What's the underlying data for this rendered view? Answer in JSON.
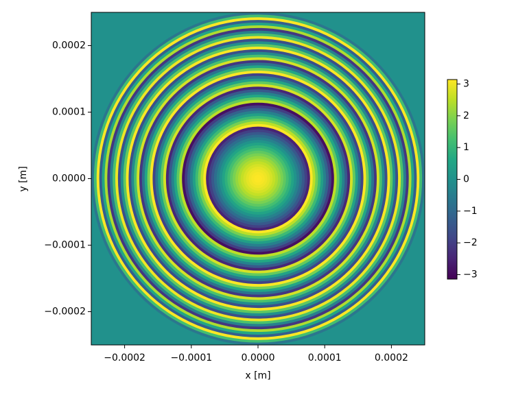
{
  "chart_data": {
    "type": "radial_heatmap",
    "xlabel": "x [m]",
    "ylabel": "y [m]",
    "colormap": "viridis",
    "clim": [
      -3.14,
      3.14
    ],
    "cticks": [
      {
        "value": -3,
        "label": "−3"
      },
      {
        "value": -2,
        "label": "−2"
      },
      {
        "value": -1,
        "label": "−1"
      },
      0,
      1,
      2,
      3
    ],
    "xlim": [
      -0.00025,
      0.00025
    ],
    "ylim": [
      -0.00025,
      0.00025
    ],
    "xticks": [
      {
        "value": -0.0002,
        "label": "−0.0002"
      },
      {
        "value": -0.0001,
        "label": "−0.0001"
      },
      {
        "value": 0,
        "label": "0.0000"
      },
      0.0001,
      0.0002
    ],
    "yticks": [
      {
        "value": -0.0002,
        "label": "−0.0002"
      },
      {
        "value": -0.0001,
        "label": "−0.0001"
      },
      {
        "value": 0,
        "label": "0.0000"
      },
      0.0001,
      0.0002
    ],
    "background_value": 0,
    "r": [
      0,
      4e-06,
      8e-06,
      1.2e-05,
      1.6e-05,
      2e-05,
      2.4e-05,
      2.8e-05,
      3.2e-05,
      3.6e-05,
      4e-05,
      4.4e-05,
      4.8e-05,
      5.2e-05,
      5.6e-05,
      6e-05,
      6.4e-05,
      6.8e-05,
      7.2e-05,
      7.6e-05,
      8e-05,
      8.4e-05,
      8.8e-05,
      9.2e-05,
      9.6e-05,
      0.0001,
      0.000104,
      0.000108,
      0.000112,
      0.000116,
      0.00012,
      0.000124,
      0.000128,
      0.000132,
      0.000136,
      0.00014,
      0.000144,
      0.000148,
      0.000152,
      0.000156,
      0.00016,
      0.000164,
      0.000168,
      0.000172,
      0.000176,
      0.00018,
      0.000184,
      0.000188,
      0.000192,
      0.000196,
      0.0002,
      0.000204,
      0.000208,
      0.000212,
      0.000216,
      0.00022,
      0.000224,
      0.000228,
      0.000232,
      0.000236,
      0.00024,
      0.000244,
      0.000248
    ],
    "values": [
      3.14,
      3.13,
      3.08,
      3.0,
      2.89,
      2.75,
      2.58,
      2.37,
      2.14,
      1.87,
      1.57,
      1.24,
      0.88,
      0.49,
      0.06,
      -0.39,
      -0.88,
      -1.4,
      -1.95,
      -2.53,
      3.14,
      2.5,
      1.82,
      1.12,
      0.38,
      -0.39,
      -1.19,
      -2.03,
      -2.89,
      2.5,
      1.57,
      0.61,
      -0.38,
      -1.4,
      -2.45,
      2.75,
      1.63,
      0.49,
      -0.69,
      -1.9,
      3.14,
      1.87,
      0.56,
      -0.77,
      -2.14,
      2.75,
      1.32,
      -0.14,
      -1.63,
      3.13,
      1.57,
      -0.02,
      -1.63,
      3.0,
      1.32,
      -0.39,
      -2.14,
      2.37,
      0.56,
      -1.27,
      3.14,
      1.24,
      -0.69
    ]
  }
}
